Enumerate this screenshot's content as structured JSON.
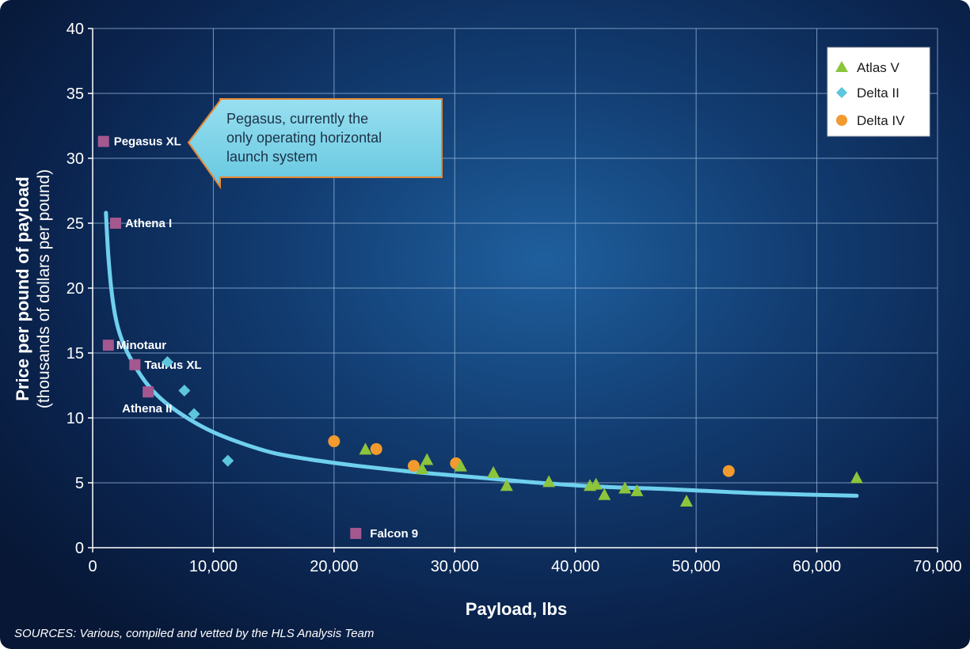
{
  "chart_data": {
    "type": "scatter",
    "xlabel": "Payload, lbs",
    "ylabel": "Price per pound of payload",
    "ylabel_sub": "(thousands of dollars per pound)",
    "xlim": [
      0,
      70000
    ],
    "ylim": [
      0,
      40
    ],
    "x_ticks": [
      0,
      10000,
      20000,
      30000,
      40000,
      50000,
      60000,
      70000
    ],
    "x_tick_labels": [
      "0",
      "10,000",
      "20,000",
      "30,000",
      "40,000",
      "50,000",
      "60,000",
      "70,000"
    ],
    "y_ticks": [
      0,
      5,
      10,
      15,
      20,
      25,
      30,
      35,
      40
    ],
    "y_tick_labels": [
      "0",
      "5",
      "10",
      "15",
      "20",
      "25",
      "30",
      "35",
      "40"
    ],
    "grid": true,
    "legend_position": "top-right",
    "colors": {
      "atlas": "#8cc43c",
      "delta2": "#5cc6dc",
      "delta4": "#f29a2e",
      "other": "#a4588f",
      "curve": "#6fd0ee",
      "grid": "#8fb2d6",
      "callout_fill": "#7fd3e8"
    },
    "series": [
      {
        "name": "Atlas V",
        "marker": "triangle",
        "points": [
          {
            "x": 22600,
            "y": 7.6
          },
          {
            "x": 27300,
            "y": 6.1
          },
          {
            "x": 27700,
            "y": 6.8
          },
          {
            "x": 30500,
            "y": 6.3
          },
          {
            "x": 33200,
            "y": 5.8
          },
          {
            "x": 34300,
            "y": 4.8
          },
          {
            "x": 37800,
            "y": 5.1
          },
          {
            "x": 41200,
            "y": 4.8
          },
          {
            "x": 41700,
            "y": 4.9
          },
          {
            "x": 42400,
            "y": 4.1
          },
          {
            "x": 44100,
            "y": 4.6
          },
          {
            "x": 45100,
            "y": 4.4
          },
          {
            "x": 49200,
            "y": 3.6
          },
          {
            "x": 63300,
            "y": 5.4
          }
        ]
      },
      {
        "name": "Delta II",
        "marker": "diamond",
        "points": [
          {
            "x": 6200,
            "y": 14.3
          },
          {
            "x": 7600,
            "y": 12.1
          },
          {
            "x": 8400,
            "y": 10.3
          },
          {
            "x": 11200,
            "y": 6.7
          }
        ]
      },
      {
        "name": "Delta IV",
        "marker": "circle",
        "points": [
          {
            "x": 20000,
            "y": 8.2
          },
          {
            "x": 23500,
            "y": 7.6
          },
          {
            "x": 26600,
            "y": 6.3
          },
          {
            "x": 30100,
            "y": 6.5
          },
          {
            "x": 52700,
            "y": 5.9
          }
        ]
      }
    ],
    "other_vehicles": [
      {
        "label": "Pegasus XL",
        "x": 900,
        "y": 31.3
      },
      {
        "label": "Athena I",
        "x": 1900,
        "y": 25.0
      },
      {
        "label": "Minotaur",
        "x": 1300,
        "y": 15.6
      },
      {
        "label": "Taurus XL",
        "x": 3500,
        "y": 14.1
      },
      {
        "label": "Athena II",
        "x": 4600,
        "y": 12.0
      },
      {
        "label": "Falcon 9",
        "x": 21800,
        "y": 1.1
      }
    ],
    "trend_curve": {
      "points": [
        [
          1100,
          25.8
        ],
        [
          1300,
          22.5
        ],
        [
          1600,
          19.5
        ],
        [
          2000,
          17.3
        ],
        [
          2600,
          15.6
        ],
        [
          3500,
          14.0
        ],
        [
          4600,
          12.5
        ],
        [
          6000,
          11.2
        ],
        [
          8000,
          9.9
        ],
        [
          10000,
          8.9
        ],
        [
          12500,
          8.0
        ],
        [
          15000,
          7.3
        ],
        [
          18000,
          6.8
        ],
        [
          22000,
          6.3
        ],
        [
          27000,
          5.8
        ],
        [
          32000,
          5.4
        ],
        [
          37000,
          5.0
        ],
        [
          42000,
          4.7
        ],
        [
          48000,
          4.5
        ],
        [
          55000,
          4.2
        ],
        [
          63300,
          4.0
        ]
      ]
    },
    "annotation": {
      "lines": [
        "Pegasus, currently the",
        "only operating horizontal",
        "launch system"
      ]
    }
  },
  "source_text": "SOURCES: Various, compiled and vetted by the HLS Analysis Team"
}
